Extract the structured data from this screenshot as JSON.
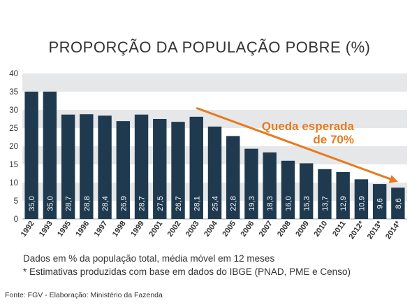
{
  "chart_data": {
    "type": "bar",
    "title": "PROPORÇÃO DA POPULAÇÃO POBRE (%)",
    "categories": [
      "1992",
      "1993",
      "1995",
      "1996",
      "1997",
      "1998",
      "1999",
      "2001",
      "2002",
      "2003",
      "2004",
      "2005",
      "2006",
      "2007",
      "2008",
      "2009",
      "2010",
      "2011",
      "2012*",
      "2013*",
      "2014*"
    ],
    "values": [
      35.0,
      35.0,
      28.7,
      28.8,
      28.4,
      26.9,
      28.7,
      27.5,
      26.7,
      28.1,
      25.4,
      22.8,
      19.3,
      18.3,
      16.0,
      15.3,
      13.7,
      12.9,
      10.9,
      9.6,
      8.6
    ],
    "value_labels": [
      "35,0",
      "35,0",
      "28,7",
      "28,8",
      "28,4",
      "26,9",
      "28,7",
      "27,5",
      "26,7",
      "28,1",
      "25,4",
      "22,8",
      "19,3",
      "18,3",
      "16,0",
      "15,3",
      "13,7",
      "12,9",
      "10,9",
      "9,6",
      "8,6"
    ],
    "y_ticks": [
      "0",
      "5",
      "10",
      "15",
      "20",
      "25",
      "30",
      "35",
      "40"
    ],
    "ylim": [
      0,
      40
    ],
    "xlabel": "",
    "ylabel": "",
    "grid": "alternating horizontal bands",
    "bar_color": "#1f3a4f",
    "band_color": "#e6e7e9",
    "annotation": {
      "line1": "Queda esperada",
      "line2": "de 70%",
      "color": "#e57b1e",
      "arrow_from": {
        "x": "2003",
        "y": 30.5
      },
      "arrow_to": {
        "x": "2014*",
        "y": 10.2
      }
    }
  },
  "notes": {
    "line1": "Dados em % da população total, média móvel em 12 meses",
    "line2": "* Estimativas produzidas com base em dados do IBGE (PNAD, PME e Censo)"
  },
  "source": "Fonte: FGV - Elaboração: Ministério da Fazenda"
}
